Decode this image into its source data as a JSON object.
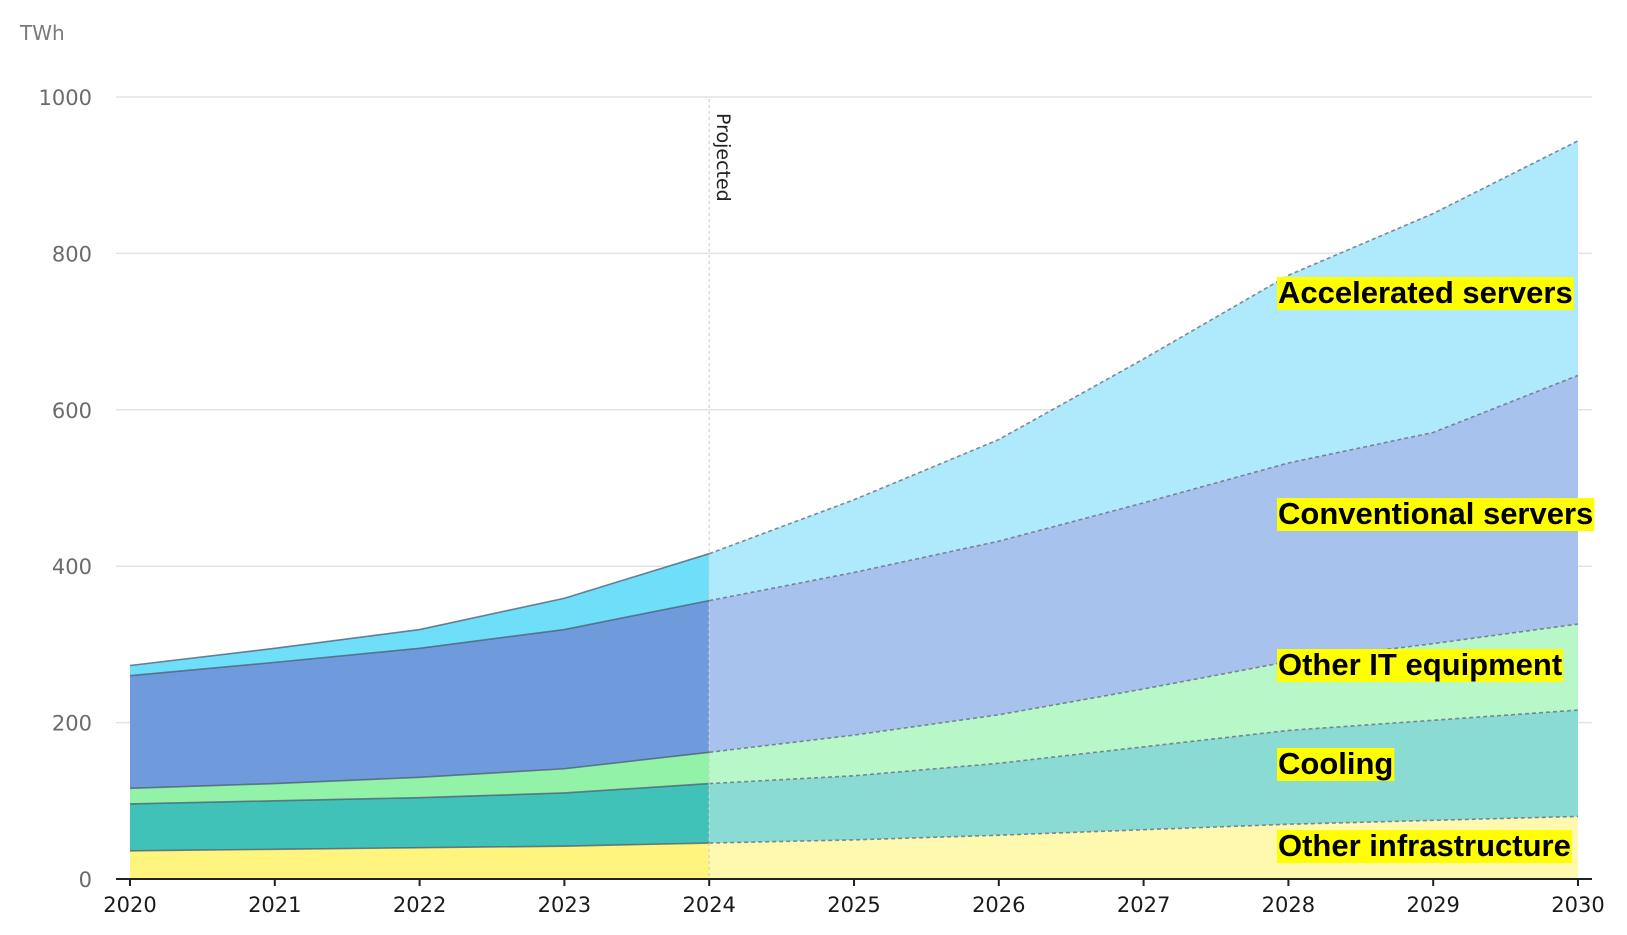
{
  "chart_data": {
    "type": "area",
    "stacked": true,
    "unit_label": "TWh",
    "x": [
      2020,
      2021,
      2022,
      2023,
      2024,
      2025,
      2026,
      2027,
      2028,
      2029,
      2030
    ],
    "ylim": [
      0,
      1000
    ],
    "yticks": [
      0,
      200,
      400,
      600,
      800,
      1000
    ],
    "projection_start": 2024,
    "projection_label": "Projected",
    "grid": true,
    "series": [
      {
        "name": "Other infrastructure",
        "values": [
          36,
          38,
          40,
          42,
          46,
          50,
          56,
          63,
          70,
          75,
          80
        ],
        "color": "#fff57e",
        "projected_color": "#fff9b0"
      },
      {
        "name": "Cooling",
        "values": [
          60,
          62,
          64,
          68,
          76,
          82,
          92,
          106,
          120,
          128,
          136
        ],
        "color": "#40c2b8",
        "projected_color": "#8adbd4"
      },
      {
        "name": "Other IT equipment",
        "values": [
          20,
          22,
          26,
          31,
          40,
          52,
          62,
          74,
          88,
          98,
          110
        ],
        "color": "#92f2a8",
        "projected_color": "#b8f7c8"
      },
      {
        "name": "Conventional servers",
        "values": [
          144,
          155,
          165,
          178,
          194,
          208,
          222,
          238,
          254,
          270,
          318
        ],
        "color": "#6f9bdd",
        "projected_color": "#a8c2ee"
      },
      {
        "name": "Accelerated servers",
        "values": [
          13,
          18,
          24,
          40,
          60,
          93,
          130,
          184,
          240,
          280,
          300
        ],
        "color": "#6fdff9",
        "projected_color": "#aeeafb"
      }
    ]
  }
}
